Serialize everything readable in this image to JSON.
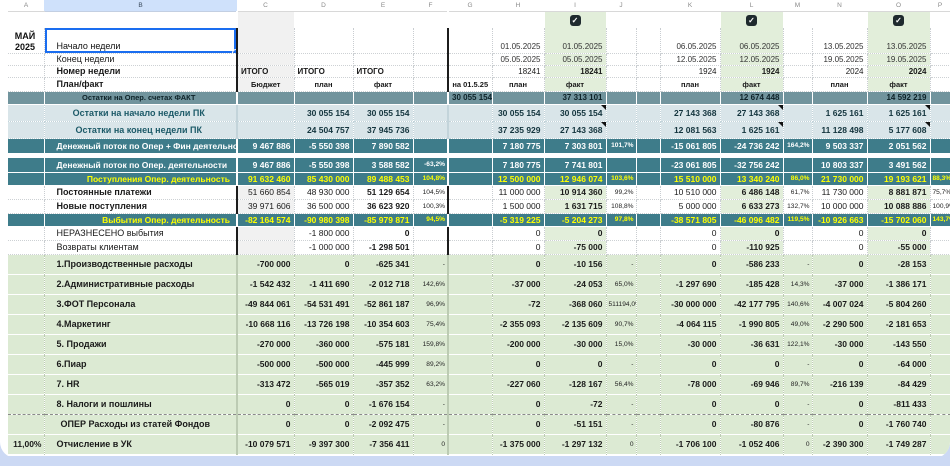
{
  "top": {
    "month": "МАЙ\n2025",
    "check_glyph": "✓"
  },
  "colors": {
    "teal_band": "#3e7c8a",
    "fact_accounts_band": "#71949d",
    "light_blue_band": "#d9e5e9",
    "fact_column_green": "#e2eeda",
    "expense_band_green": "#dcead3",
    "highlight_yellow": "#fdff00",
    "selection_blue": "#1a6df0",
    "column_b_header_blue": "#cfe1fb"
  },
  "col_letters": [
    "A",
    "B",
    "C",
    "D",
    "E",
    "F",
    "G",
    "H",
    "I",
    "J",
    "",
    "K",
    "L",
    "M",
    "N",
    "O",
    "P"
  ],
  "header_labels": {
    "start": "Начало недели",
    "end": "Конец недели",
    "num": "Номер недели",
    "planfact": "План/факт",
    "itogo": "ИТОГО",
    "budget": "Бюджет",
    "plan": "план",
    "fact": "факт",
    "asof": "на 01.5.25"
  },
  "weeks": [
    {
      "start": "01.05.2025",
      "end": "05.05.2025",
      "num": "18241",
      "checked": true
    },
    {
      "start": "06.05.2025",
      "end": "12.05.2025",
      "num": "1924",
      "checked": true
    },
    {
      "start": "13.05.2025",
      "end": "19.05.2025",
      "num": "2024",
      "checked": true
    }
  ],
  "rows": [
    {
      "kind": "fact",
      "b": "Остатки на Опер. счетах ФАКТ",
      "g": "30 055 154",
      "f1": "37 313 101",
      "f2": "12 674 448",
      "f3": "14 592 219"
    },
    {
      "kind": "light",
      "b": "Остатки на начало недели ПК",
      "d": "30 055 154",
      "e": "30 055 154",
      "p1": "30 055 154",
      "f1": "30 055 154",
      "p2": "27 143 368",
      "f2": "27 143 368",
      "p3": "1 625 161",
      "f3": "1 625 161",
      "notes": [
        "f1",
        "f2",
        "f3"
      ]
    },
    {
      "kind": "light",
      "b": "Остатки на конец недели ПК",
      "d": "24 504 757",
      "e": "37 945 736",
      "p1": "37 235 929",
      "f1": "27 143 368",
      "p2": "12 081 563",
      "f2": "1 625 161",
      "p3": "11 128 498",
      "f3": "5 177 608",
      "notes": [
        "f1",
        "f2",
        "f3"
      ]
    },
    {
      "kind": "teal",
      "b": "Денежный поток по Опер + Фин деятельности",
      "c": "9 467 886",
      "d": "-5 550 398",
      "e": "7 890 582",
      "p1": "7 180 775",
      "f1": "7 303 801",
      "x1": "101,7%",
      "p2": "-15 061 805",
      "f2": "-24 736 242",
      "x2": "164,2%",
      "p3": "9 503 337",
      "f3": "2 051 562"
    },
    {
      "kind": "gap"
    },
    {
      "kind": "teal",
      "b": "Денежный поток по Опер. деятельности",
      "c": "9 467 886",
      "d": "-5 550 398",
      "e": "3 588 582",
      "f": "-63,2%",
      "p1": "7 180 775",
      "f1": "7 741 801",
      "p2": "-23 061 805",
      "f2": "-32 756 242",
      "p3": "10 803 337",
      "f3": "3 491 562"
    },
    {
      "kind": "tealy",
      "b": "Поступления Опер. деятельность",
      "c": "91 632 460",
      "d": "85 430 000",
      "e": "89 488 453",
      "f": "104,8%",
      "p1": "12 500 000",
      "f1": "12 946 074",
      "x1": "103,6%",
      "p2": "15 510 000",
      "f2": "13 340 240",
      "x2": "86,0%",
      "p3": "21 730 000",
      "f3": "19 193 621",
      "x3": "88,3%"
    },
    {
      "kind": "plain",
      "lb": 1,
      "b": "Постоянные платежи",
      "c": "51 660 854",
      "d": "48 930 000",
      "e": "51 129 654",
      "f": "104,5%",
      "p1": "11 000 000",
      "f1": "10 914 360",
      "x1": "99,2%",
      "p2": "10 510 000",
      "f2": "6 486 148",
      "x2": "61,7%",
      "p3": "11 730 000",
      "f3": "8 881 871",
      "x3": "75,7%"
    },
    {
      "kind": "plain",
      "lb": 1,
      "b": "Новые поступления",
      "c": "39 971 606",
      "d": "36 500 000",
      "e": "36 623 920",
      "f": "100,3%",
      "p1": "1 500 000",
      "f1": "1 631 715",
      "x1": "108,8%",
      "p2": "5 000 000",
      "f2": "6 633 273",
      "x2": "132,7%",
      "p3": "10 000 000",
      "f3": "10 088 886",
      "x3": "100,9%"
    },
    {
      "kind": "tealy",
      "b": "Выбытия Опер. деятельность",
      "c": "-82 164 574",
      "d": "-90 980 398",
      "e": "-85 979 871",
      "f": "94,5%",
      "p1": "-5 319 225",
      "f1": "-5 204 273",
      "x1": "97,8%",
      "p2": "-38 571 805",
      "f2": "-46 096 482",
      "x2": "119,5%",
      "p3": "-10 926 663",
      "f3": "-15 702 060",
      "x3": "143,7%"
    },
    {
      "kind": "plain",
      "b": "НЕРАЗНЕСЕНО выбытия",
      "d": "-1 800 000",
      "e": "0",
      "p1": "0",
      "f1": "0",
      "p2": "0",
      "f2": "0",
      "p3": "0",
      "f3": "0"
    },
    {
      "kind": "plain",
      "b": "Возвраты клиентам",
      "d": "-1 000 000",
      "e": "-1 298 501",
      "p1": "0",
      "f1": "-75 000",
      "p2": "0",
      "f2": "-110 925",
      "p3": "0",
      "f3": "-55 000"
    },
    {
      "kind": "expense",
      "b": "1.Производственные расходы",
      "c": "-700 000",
      "d": "0",
      "e": "-625 341",
      "f": "-",
      "p1": "0",
      "f1": "-10 156",
      "x1": "-",
      "p2": "0",
      "f2": "-586 233",
      "x2": "-",
      "p3": "0",
      "f3": "-28 153"
    },
    {
      "kind": "expense",
      "b": "2.Административные расходы",
      "c": "-1 542 432",
      "d": "-1 411 690",
      "e": "-2 012 718",
      "f": "142,6%",
      "p1": "-37 000",
      "f1": "-24 053",
      "x1": "65,0%",
      "p2": "-1 297 690",
      "f2": "-185 428",
      "x2": "14,3%",
      "p3": "-37 000",
      "f3": "-1 386 171"
    },
    {
      "kind": "expense",
      "b": "3.ФОТ Персонала",
      "c": "-49 844 061",
      "d": "-54 531 491",
      "e": "-52 861 187",
      "f": "96,9%",
      "p1": "-72",
      "f1": "-368 060",
      "x1": "511194,0%",
      "p2": "-30 000 000",
      "f2": "-42 177 795",
      "x2": "140,6%",
      "p3": "-4 007 024",
      "f3": "-5 804 260"
    },
    {
      "kind": "expense",
      "b": "4.Маркетинг",
      "c": "-10 668 116",
      "d": "-13 726 198",
      "e": "-10 354 603",
      "f": "75,4%",
      "p1": "-2 355 093",
      "f1": "-2 135 609",
      "x1": "90,7%",
      "p2": "-4 064 115",
      "f2": "-1 990 805",
      "x2": "49,0%",
      "p3": "-2 290 500",
      "f3": "-2 181 653"
    },
    {
      "kind": "expense",
      "b": "5. Продажи",
      "c": "-270 000",
      "d": "-360 000",
      "e": "-575 181",
      "f": "159,8%",
      "p1": "-200 000",
      "f1": "-30 000",
      "x1": "15,0%",
      "p2": "-30 000",
      "f2": "-36 631",
      "x2": "122,1%",
      "p3": "-30 000",
      "f3": "-143 550"
    },
    {
      "kind": "expense",
      "b": "6.Пиар",
      "c": "-500 000",
      "d": "-500 000",
      "e": "-445 999",
      "f": "89,2%",
      "p1": "0",
      "f1": "0",
      "x1": "-",
      "p2": "0",
      "f2": "0",
      "x2": "-",
      "p3": "0",
      "f3": "-64 000"
    },
    {
      "kind": "expense",
      "b": "7. HR",
      "c": "-313 472",
      "d": "-565 019",
      "e": "-357 352",
      "f": "63,2%",
      "p1": "-227 060",
      "f1": "-128 167",
      "x1": "56,4%",
      "p2": "-78 000",
      "f2": "-69 946",
      "x2": "89,7%",
      "p3": "-216 139",
      "f3": "-84 429"
    },
    {
      "kind": "expense",
      "b": "8. Налоги и пошлины",
      "c": "0",
      "d": "0",
      "e": "-1 676 154",
      "f": "-",
      "p1": "0",
      "f1": "-72",
      "x1": "-",
      "p2": "0",
      "f2": "0",
      "x2": "-",
      "p3": "0",
      "f3": "-811 433"
    },
    {
      "kind": "expense",
      "sep": 1,
      "ind": 1,
      "b": "ОПЕР Расходы из статей Фондов",
      "c": "0",
      "d": "0",
      "e": "-2 092 475",
      "f": "-",
      "p1": "0",
      "f1": "-51 151",
      "x1": "-",
      "p2": "0",
      "f2": "-80 876",
      "x2": "-",
      "p3": "0",
      "f3": "-1 760 740"
    },
    {
      "kind": "expense",
      "a": "11,00%",
      "b": "Отчисление в  УК",
      "c": "-10 079 571",
      "d": "-9 397 300",
      "e": "-7 356 411",
      "f": "0",
      "p1": "-1 375 000",
      "f1": "-1 297 132",
      "x1": "0",
      "p2": "-1 706 100",
      "f2": "-1 052 406",
      "x2": "0",
      "p3": "-2 390 300",
      "f3": "-1 749 287"
    }
  ]
}
